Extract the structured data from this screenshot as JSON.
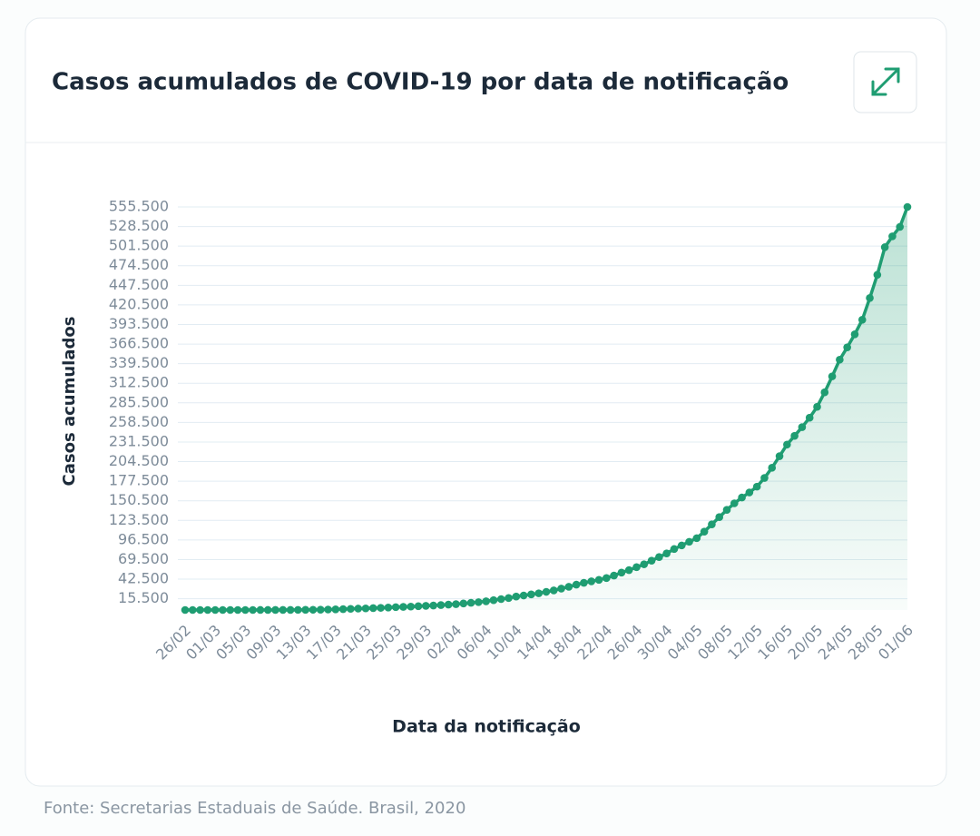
{
  "chart_data": {
    "type": "line",
    "title": "Casos acumulados de COVID-19 por data de notificação",
    "x_label": "Data da notificação",
    "y_label": "Casos acumulados",
    "categories": [
      "26/02",
      null,
      null,
      null,
      "01/03",
      null,
      null,
      null,
      "05/03",
      null,
      null,
      null,
      "09/03",
      null,
      null,
      null,
      "13/03",
      null,
      null,
      null,
      "17/03",
      null,
      null,
      null,
      "21/03",
      null,
      null,
      null,
      "25/03",
      null,
      null,
      null,
      "29/03",
      null,
      null,
      null,
      "02/04",
      null,
      null,
      null,
      "06/04",
      null,
      null,
      null,
      "10/04",
      null,
      null,
      null,
      "14/04",
      null,
      null,
      null,
      "18/04",
      null,
      null,
      null,
      "22/04",
      null,
      null,
      null,
      "26/04",
      null,
      null,
      null,
      "30/04",
      null,
      null,
      null,
      "04/05",
      null,
      null,
      null,
      "08/05",
      null,
      null,
      null,
      "12/05",
      null,
      null,
      null,
      "16/05",
      null,
      null,
      null,
      "20/05",
      null,
      null,
      null,
      "24/05",
      null,
      null,
      null,
      "28/05",
      null,
      null,
      null,
      "01/06"
    ],
    "values": [
      1,
      1,
      1,
      2,
      2,
      2,
      3,
      3,
      8,
      13,
      20,
      25,
      30,
      38,
      77,
      151,
      200,
      290,
      430,
      620,
      900,
      1200,
      1550,
      1900,
      2200,
      2600,
      2950,
      3400,
      3900,
      4300,
      4700,
      5200,
      5700,
      6200,
      6800,
      7400,
      8100,
      9000,
      9900,
      10800,
      12000,
      13500,
      15000,
      16500,
      18500,
      20000,
      21500,
      23000,
      25000,
      27000,
      29500,
      32000,
      35000,
      37500,
      39500,
      41500,
      44000,
      47500,
      51500,
      55000,
      59000,
      63000,
      68000,
      73000,
      78000,
      84000,
      89000,
      94000,
      99000,
      108000,
      118000,
      128000,
      138000,
      147000,
      155000,
      162000,
      170000,
      182000,
      196000,
      212000,
      228000,
      240000,
      252000,
      265000,
      280000,
      300000,
      322000,
      345000,
      362000,
      380000,
      400000,
      430000,
      462000,
      500000,
      515000,
      528000,
      555500
    ],
    "color": "#1f9d72",
    "ylim": [
      0,
      555500
    ],
    "yticks": [
      {
        "value": 15500,
        "label": "15.500"
      },
      {
        "value": 42500,
        "label": "42.500"
      },
      {
        "value": 69500,
        "label": "69.500"
      },
      {
        "value": 96500,
        "label": "96.500"
      },
      {
        "value": 123500,
        "label": "123.500"
      },
      {
        "value": 150500,
        "label": "150.500"
      },
      {
        "value": 177500,
        "label": "177.500"
      },
      {
        "value": 204500,
        "label": "204.500"
      },
      {
        "value": 231500,
        "label": "231.500"
      },
      {
        "value": 258500,
        "label": "258.500"
      },
      {
        "value": 285500,
        "label": "285.500"
      },
      {
        "value": 312500,
        "label": "312.500"
      },
      {
        "value": 339500,
        "label": "339.500"
      },
      {
        "value": 366500,
        "label": "366.500"
      },
      {
        "value": 393500,
        "label": "393.500"
      },
      {
        "value": 420500,
        "label": "420.500"
      },
      {
        "value": 447500,
        "label": "447.500"
      },
      {
        "value": 474500,
        "label": "474.500"
      },
      {
        "value": 501500,
        "label": "501.500"
      },
      {
        "value": 528500,
        "label": "528.500"
      },
      {
        "value": 555500,
        "label": "555.500"
      }
    ],
    "grid": true
  },
  "source": "Fonte: Secretarias Estaduais de Saúde. Brasil, 2020"
}
